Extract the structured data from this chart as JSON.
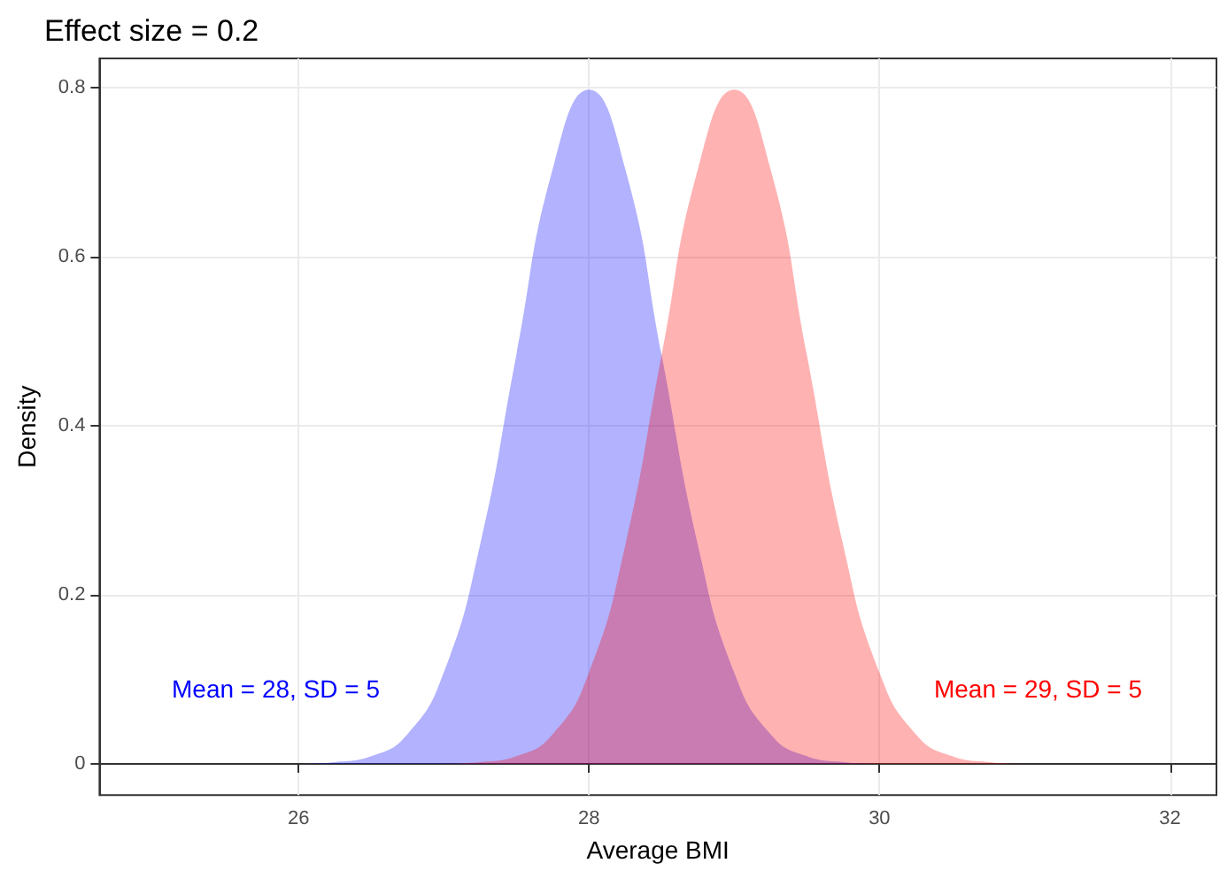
{
  "chart_data": {
    "type": "area",
    "title": "Effect size = 0.2",
    "xlabel": "Average BMI",
    "ylabel": "Density",
    "series": [
      {
        "color": "#0000ff",
        "x": [
          26,
          26.25,
          26.5,
          26.75,
          27,
          27.25,
          27.5,
          27.75,
          28,
          28.25,
          28.5,
          28.75,
          29,
          29.25,
          29.5,
          29.75,
          30
        ],
        "values": [
          0,
          0.002,
          0.009,
          0.035,
          0.108,
          0.259,
          0.484,
          0.704,
          0.798,
          0.704,
          0.484,
          0.259,
          0.108,
          0.035,
          0.009,
          0.002,
          0
        ]
      },
      {
        "color": "#ff0000",
        "x": [
          27,
          27.25,
          27.5,
          27.75,
          28,
          28.25,
          28.5,
          28.75,
          29,
          29.25,
          29.5,
          29.75,
          30,
          30.25,
          30.5,
          30.75,
          31
        ],
        "values": [
          0,
          0.002,
          0.009,
          0.035,
          0.108,
          0.259,
          0.484,
          0.704,
          0.798,
          0.704,
          0.484,
          0.259,
          0.108,
          0.035,
          0.009,
          0.002,
          0
        ]
      }
    ],
    "annotations": [
      "Mean = 28, SD = 5",
      "Mean = 29, SD = 5"
    ],
    "xlim": [
      24.63,
      32.32
    ],
    "ylim": [
      -0.037,
      0.835
    ],
    "xticks": [
      26,
      28,
      30,
      32
    ],
    "yticks": [
      0,
      0.2,
      0.4,
      0.6,
      0.8
    ],
    "grid": true
  }
}
